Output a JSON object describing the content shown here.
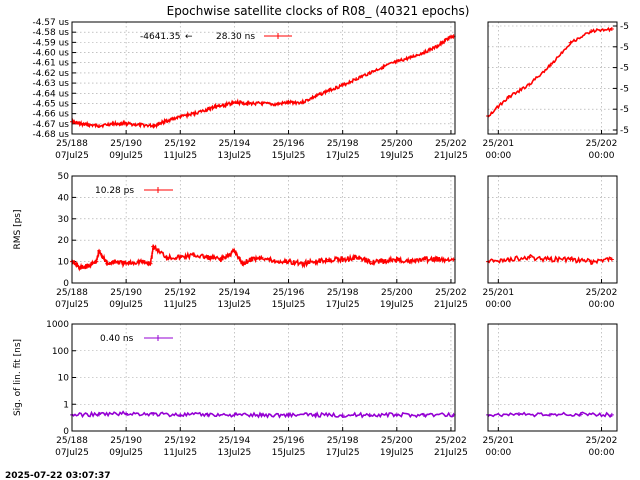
{
  "title": "Epochwise satellite clocks of R08_ (40321 epochs)",
  "timestamp": "2025-07-22 03:07:37",
  "colors": {
    "red": "#ff0000",
    "purple": "#9400d3",
    "grid": "#a0a0a0"
  },
  "chart_data": [
    {
      "id": "clock",
      "type": "line",
      "ylabel": "",
      "y_ticks": [
        "-4.57 us",
        "-4.58 us",
        "-4.59 us",
        "-4.60 us",
        "-4.61 us",
        "-4.62 us",
        "-4.63 us",
        "-4.64 us",
        "-4.65 us",
        "-4.66 us",
        "-4.67 us",
        "-4.68 us"
      ],
      "ylim": [
        -4.68,
        -4.57
      ],
      "x_ticks": [
        [
          "25/188",
          "07Jul25"
        ],
        [
          "25/190",
          "09Jul25"
        ],
        [
          "25/192",
          "11Jul25"
        ],
        [
          "25/194",
          "13Jul25"
        ],
        [
          "25/196",
          "15Jul25"
        ],
        [
          "25/198",
          "17Jul25"
        ],
        [
          "25/200",
          "19Jul25"
        ],
        [
          "25/202",
          "21Jul25"
        ]
      ],
      "xlim": [
        188,
        202.15
      ],
      "legend": {
        "value": "-4641.35",
        "arrow": "←",
        "rms": "28.30 ns"
      },
      "series": [
        {
          "color": "#ff0000",
          "x": [
            188.0,
            188.3,
            188.6,
            189.0,
            189.5,
            189.8,
            190.0,
            190.5,
            191.0,
            191.2,
            191.5,
            192.0,
            192.5,
            193.0,
            193.3,
            193.6,
            193.9,
            194.2,
            194.5,
            195.0,
            195.5,
            196.0,
            196.5,
            197.0,
            197.5,
            198.0,
            198.5,
            199.0,
            199.5,
            200.0,
            200.5,
            201.0,
            201.5,
            201.9,
            202.1
          ],
          "y": [
            -4.668,
            -4.67,
            -4.671,
            -4.672,
            -4.67,
            -4.67,
            -4.67,
            -4.671,
            -4.672,
            -4.67,
            -4.667,
            -4.663,
            -4.66,
            -4.656,
            -4.653,
            -4.652,
            -4.65,
            -4.649,
            -4.65,
            -4.65,
            -4.651,
            -4.649,
            -4.649,
            -4.643,
            -4.637,
            -4.632,
            -4.626,
            -4.62,
            -4.614,
            -4.609,
            -4.605,
            -4.6,
            -4.594,
            -4.586,
            -4.584
          ]
        }
      ],
      "right_panel": {
        "y_ticks": [
          "-5",
          "-5",
          "-5",
          "-5",
          "-5",
          "-5"
        ],
        "x_ticks": [
          [
            "25/201",
            "00:00"
          ],
          [
            "25/202",
            "00:00"
          ]
        ],
        "xlim": [
          200.9,
          202.15
        ],
        "x": [
          200.9,
          201.1,
          201.3,
          201.5,
          201.7,
          201.9,
          202.1
        ],
        "y": [
          -4.668,
          -4.65,
          -4.638,
          -4.62,
          -4.598,
          -4.587,
          -4.585
        ]
      }
    },
    {
      "id": "rms",
      "type": "line",
      "ylabel": "RMS [ps]",
      "y_ticks": [
        "0",
        "10",
        "20",
        "30",
        "40",
        "50"
      ],
      "ylim": [
        0,
        50
      ],
      "x_ticks": [
        [
          "25/188",
          "07Jul25"
        ],
        [
          "25/190",
          "09Jul25"
        ],
        [
          "25/192",
          "11Jul25"
        ],
        [
          "25/194",
          "13Jul25"
        ],
        [
          "25/196",
          "15Jul25"
        ],
        [
          "25/198",
          "17Jul25"
        ],
        [
          "25/200",
          "19Jul25"
        ],
        [
          "25/202",
          "21Jul25"
        ]
      ],
      "xlim": [
        188,
        202.15
      ],
      "legend": {
        "rms": "10.28 ps"
      },
      "series": [
        {
          "color": "#ff0000",
          "x": [
            188.0,
            188.3,
            188.6,
            188.9,
            189.0,
            189.3,
            189.6,
            190.0,
            190.5,
            190.9,
            191.0,
            191.5,
            192.0,
            192.5,
            193.0,
            193.5,
            193.8,
            194.0,
            194.3,
            194.6,
            195.0,
            195.5,
            196.0,
            196.5,
            197.0,
            197.5,
            198.0,
            198.5,
            199.0,
            199.5,
            200.0,
            200.5,
            201.0,
            201.5,
            202.1
          ],
          "y": [
            10,
            7,
            8,
            10,
            15,
            9,
            10,
            9,
            10,
            9,
            17,
            12,
            12,
            13,
            12,
            11,
            13,
            15,
            9,
            11,
            12,
            10,
            10,
            9,
            10,
            11,
            11,
            12,
            10,
            10,
            11,
            10,
            11,
            11,
            11
          ]
        }
      ],
      "right_panel": {
        "x_ticks": [
          [
            "25/201",
            "00:00"
          ],
          [
            "25/202",
            "00:00"
          ]
        ],
        "xlim": [
          200.9,
          202.15
        ],
        "x": [
          200.9,
          201.1,
          201.3,
          201.5,
          201.7,
          201.9,
          202.1
        ],
        "y": [
          10,
          11,
          12,
          11,
          11,
          10,
          11
        ]
      }
    },
    {
      "id": "sig",
      "type": "line",
      "ylabel": "Sig. of lin. fit [ns]",
      "y_ticks": [
        "1000",
        "100",
        "10",
        "1",
        "0"
      ],
      "log_scale": true,
      "ylim": [
        0.1,
        1000
      ],
      "x_ticks": [
        [
          "25/188",
          "07Jul25"
        ],
        [
          "25/190",
          "09Jul25"
        ],
        [
          "25/192",
          "11Jul25"
        ],
        [
          "25/194",
          "13Jul25"
        ],
        [
          "25/196",
          "15Jul25"
        ],
        [
          "25/198",
          "17Jul25"
        ],
        [
          "25/200",
          "19Jul25"
        ],
        [
          "25/202",
          "21Jul25"
        ]
      ],
      "xlim": [
        188,
        202.15
      ],
      "legend": {
        "rms": "0.40 ns"
      },
      "series": [
        {
          "color": "#9400d3",
          "x": [
            188.0,
            189.0,
            190.0,
            191.0,
            192.0,
            193.0,
            194.0,
            195.0,
            196.0,
            197.0,
            198.0,
            199.0,
            200.0,
            201.0,
            202.1
          ],
          "y": [
            0.4,
            0.42,
            0.45,
            0.43,
            0.4,
            0.41,
            0.4,
            0.39,
            0.4,
            0.4,
            0.39,
            0.4,
            0.4,
            0.4,
            0.4
          ]
        }
      ],
      "right_panel": {
        "x_ticks": [
          [
            "25/201",
            "00:00"
          ],
          [
            "25/202",
            "00:00"
          ]
        ],
        "xlim": [
          200.9,
          202.15
        ],
        "x": [
          200.9,
          201.2,
          201.5,
          201.8,
          202.1
        ],
        "y": [
          0.4,
          0.43,
          0.4,
          0.42,
          0.4
        ]
      }
    }
  ]
}
